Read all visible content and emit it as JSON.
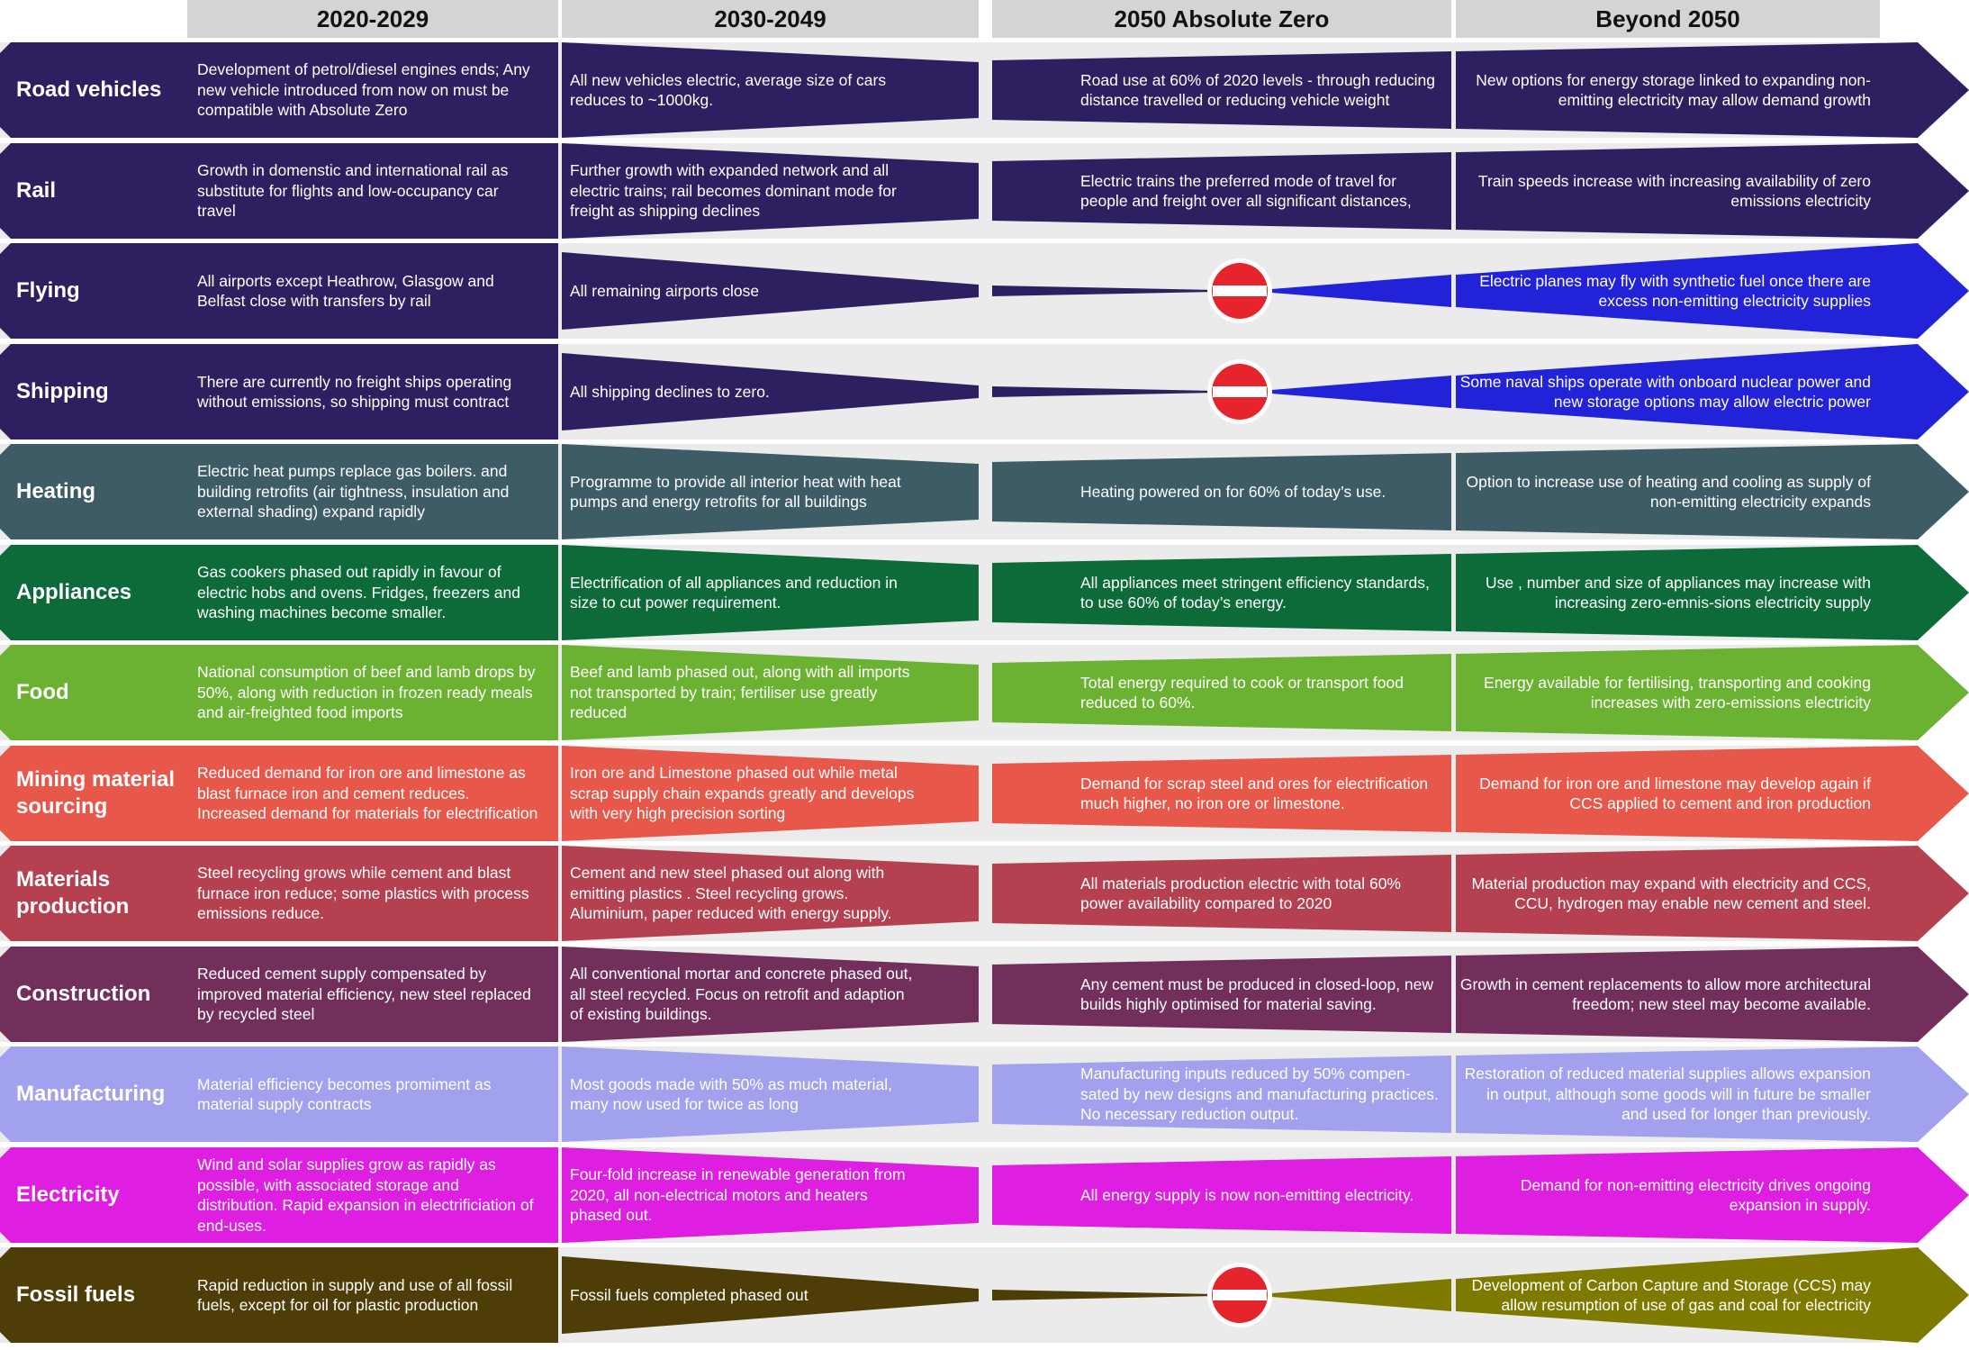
{
  "columns": [
    "2020-2029",
    "2030-2049",
    "2050 Absolute Zero",
    "Beyond 2050"
  ],
  "rows": [
    {
      "label": "Road vehicles",
      "color": "#2e2060",
      "accent": "#2e2060",
      "shape": "band",
      "stop": false,
      "c1": "Development of petrol/diesel engines ends; Any new vehicle introduced from now on must be compatible with Absolute Zero",
      "c2": "All new vehicles electric, average size of cars reduces to ~1000kg.",
      "c3": "Road use at 60% of 2020 levels - through reducing distance travelled or reducing vehicle weight",
      "c4": "New options for energy storage linked to expanding non-emitting electricity may allow demand growth"
    },
    {
      "label": "Rail",
      "color": "#2e2060",
      "accent": "#2e2060",
      "shape": "band",
      "stop": false,
      "c1": "Growth in domenstic and international rail as substitute for flights and low-occupancy car travel",
      "c2": "Further growth with expanded network and all electric trains; rail becomes dominant mode for freight as shipping declines",
      "c3": "Electric trains the preferred mode of travel for people and freight over all significant distances,",
      "c4": "Train speeds increase with increasing availability of zero emissions electricity"
    },
    {
      "label": "Flying",
      "color": "#2e2060",
      "accent": "#2222d8",
      "shape": "taper",
      "stop": true,
      "c1": "All airports except Heathrow, Glasgow and Belfast close with transfers by rail",
      "c2": "All remaining airports close",
      "c3": "",
      "c4": "Electric planes may fly with synthetic fuel once there are excess non-emitting electricity supplies"
    },
    {
      "label": "Shipping",
      "color": "#2e2060",
      "accent": "#2222d8",
      "shape": "taper",
      "stop": true,
      "c1": "There are currently no freight ships operating without emissions, so shipping must contract",
      "c2": "All shipping declines to zero.",
      "c3": "",
      "c4": "Some naval ships operate with onboard nuclear power and new storage options may allow electric power"
    },
    {
      "label": "Heating",
      "color": "#3d5c66",
      "accent": "#3d5c66",
      "shape": "band",
      "stop": false,
      "c1": "Electric heat pumps replace gas boilers. and building retrofits (air tightness, insulation and external shading) expand rapidly",
      "c2": "Programme to provide all interior heat with heat pumps and energy retrofits for all buildings",
      "c3": "Heating powered on for 60% of today’s use.",
      "c4": "Option to increase use of heating and cooling as supply of non-emitting electricity expands"
    },
    {
      "label": "Appliances",
      "color": "#0d6b3a",
      "accent": "#0d6b3a",
      "shape": "band",
      "stop": false,
      "c1": "Gas cookers phased out rapidly in favour of electric hobs and ovens. Fridges, freezers and washing machines become smaller.",
      "c2": "Electrification of all appliances and reduction in size to cut power requirement.",
      "c3": "All appliances meet stringent efficiency standards, to use 60% of today’s energy.",
      "c4": "Use , number and size of appliances may increase with increasing zero-emnis-sions electricity supply"
    },
    {
      "label": "Food",
      "color": "#6cb232",
      "accent": "#6cb232",
      "shape": "band",
      "stop": false,
      "c1": "National consumption of beef and lamb drops by 50%, along with reduction in frozen ready meals and air-freighted food imports",
      "c2": "Beef and lamb phased out, along with all imports not transported by train; fertiliser use greatly reduced",
      "c3": "Total energy required to cook or transport food reduced to 60%.",
      "c4": "Energy available for fertilising, transporting and cooking increases with zero-emissions electricity"
    },
    {
      "label": "Mining material sourcing",
      "color": "#e8584a",
      "accent": "#e8584a",
      "shape": "band",
      "stop": false,
      "c1": "Reduced demand for iron ore and limestone as blast furnace iron and cement reduces. Increased demand for materials for electrification",
      "c2": "Iron ore and Limestone phased out while metal scrap supply chain expands greatly and develops with very high precision sorting",
      "c3": "Demand for scrap steel and ores for electrification much higher, no iron ore or limestone.",
      "c4": "Demand for iron ore and limestone may develop again if CCS applied to cement and iron production"
    },
    {
      "label": "Materials production",
      "color": "#b54150",
      "accent": "#b54150",
      "shape": "band",
      "stop": false,
      "c1": "Steel recycling grows while cement and blast furnace iron reduce; some plastics with process emissions reduce.",
      "c2": "Cement and new steel phased out along with emitting plastics . Steel recycling grows. Aluminium, paper reduced with energy supply.",
      "c3": "All materials production electric with total 60% power availability compared to 2020",
      "c4": "Material production may expand with electricity and CCS, CCU, hydrogen may enable new cement and steel."
    },
    {
      "label": "Construction",
      "color": "#732f5c",
      "accent": "#732f5c",
      "shape": "band",
      "stop": false,
      "c1": "Reduced cement supply compensated by improved material efficiency, new steel replaced by recycled steel",
      "c2": "All conventional mortar and concrete phased out, all steel recycled. Focus on retrofit and adaption of existing buildings.",
      "c3": "Any cement must be produced in closed-loop, new builds highly optimised for material saving.",
      "c4": "Growth in cement replacements to allow more architectural freedom; new steel may become available."
    },
    {
      "label": "Manufacturing",
      "color": "#a1a1ee",
      "accent": "#a1a1ee",
      "shape": "band",
      "stop": false,
      "c1": "Material efficiency becomes promiment as material supply contracts",
      "c2": "Most goods made with 50% as much material, many now used for twice as long",
      "c3": "Manufacturing inputs reduced by 50% compen-sated by new designs and manufacturing practices. No necessary reduction output.",
      "c4": "Restoration of reduced material supplies allows expansion in output, although some goods will in future be smaller and used for longer than previously."
    },
    {
      "label": "Electricity",
      "color": "#de1ee0",
      "accent": "#de1ee0",
      "shape": "band",
      "stop": false,
      "c1": "Wind and solar supplies grow as rapidly as possible, with associated storage and distribution. Rapid expansion in electrificiation of end-uses.",
      "c2": "Four-fold increase in renewable generation from 2020, all non-electrical motors and heaters phased out.",
      "c3": "All energy supply is now non-emitting electricity.",
      "c4": "Demand for non-emitting electricity drives ongoing expansion in supply."
    },
    {
      "label": "Fossil fuels",
      "color": "#4e3d06",
      "accent": "#7e7a00",
      "shape": "taper",
      "stop": true,
      "c1": "Rapid reduction in supply and use of all fossil fuels, except for oil for plastic production",
      "c2": "Fossil fuels completed phased out",
      "c3": "",
      "c4": "Development of Carbon Capture and Storage (CCS) may allow resumption of use of gas and coal for electricity"
    }
  ]
}
